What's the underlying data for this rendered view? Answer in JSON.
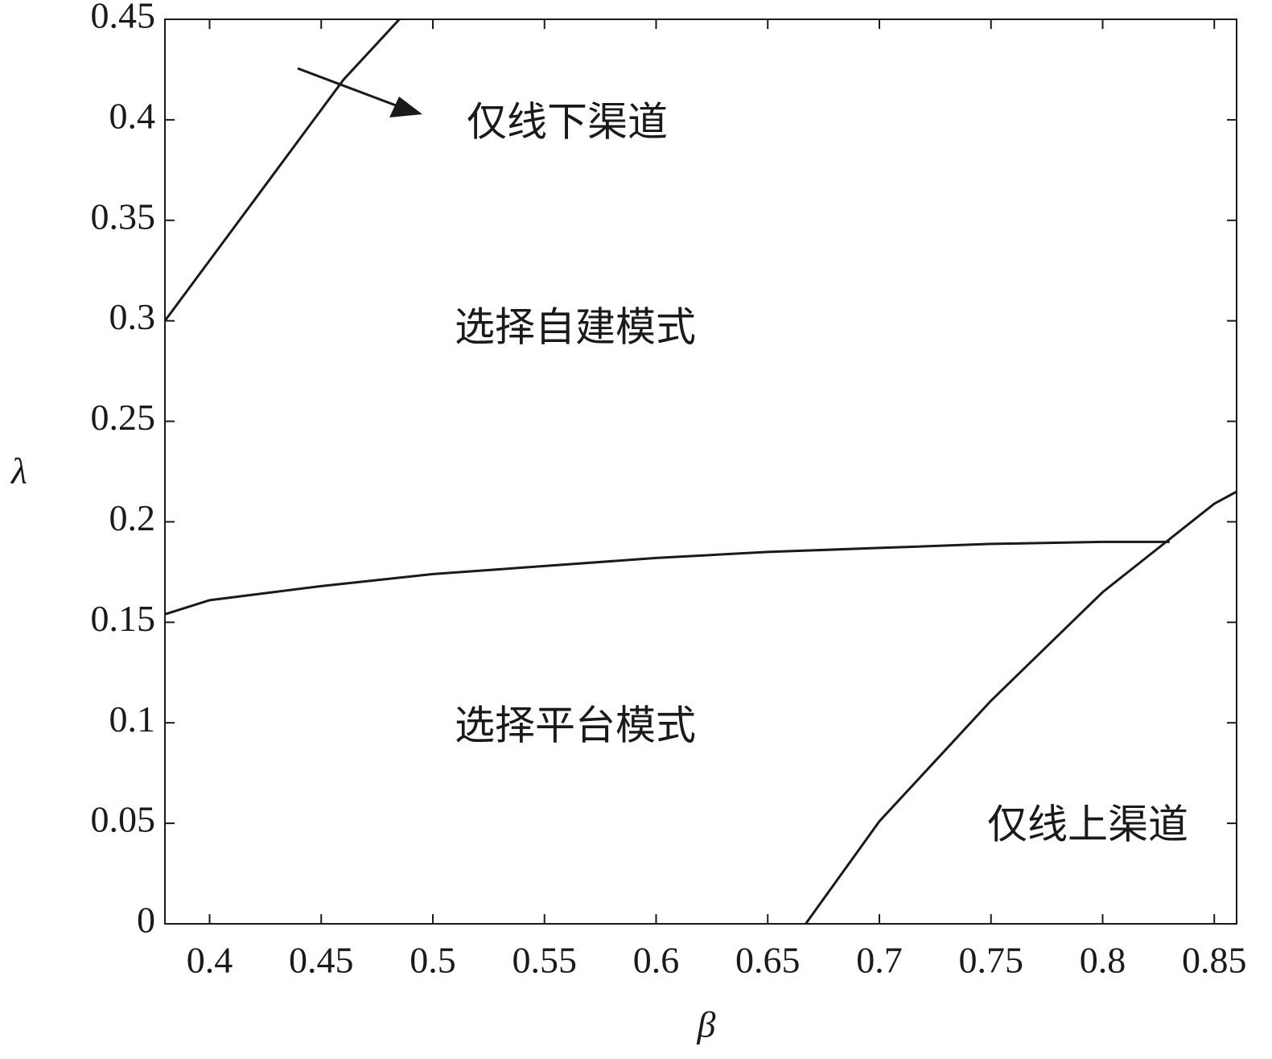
{
  "chart_data": {
    "type": "line",
    "xlabel": "β",
    "ylabel": "λ",
    "xlim": [
      0.38,
      0.86
    ],
    "ylim": [
      0,
      0.45
    ],
    "xticks": [
      0.4,
      0.45,
      0.5,
      0.55,
      0.6,
      0.65,
      0.7,
      0.75,
      0.8,
      0.85
    ],
    "yticks": [
      0,
      0.05,
      0.1,
      0.15,
      0.2,
      0.25,
      0.3,
      0.35,
      0.4,
      0.45
    ],
    "grid": false,
    "series": [
      {
        "color": "#1a1a1a",
        "x": [
          0.38,
          0.4,
          0.42,
          0.44,
          0.46,
          0.485
        ],
        "values": [
          0.3,
          0.33,
          0.36,
          0.39,
          0.42,
          0.45
        ]
      },
      {
        "color": "#1a1a1a",
        "x": [
          0.38,
          0.4,
          0.45,
          0.5,
          0.55,
          0.6,
          0.65,
          0.7,
          0.75,
          0.8,
          0.83
        ],
        "values": [
          0.154,
          0.161,
          0.168,
          0.174,
          0.178,
          0.182,
          0.185,
          0.187,
          0.189,
          0.19,
          0.19
        ]
      },
      {
        "color": "#1a1a1a",
        "x": [
          0.667,
          0.7,
          0.75,
          0.8,
          0.85,
          0.86
        ],
        "values": [
          0,
          0.051,
          0.111,
          0.165,
          0.209,
          0.215
        ]
      }
    ],
    "annotations": [
      "仅线下渠道",
      "选择自建模式",
      "选择平台模式",
      "仅线上渠道"
    ]
  }
}
